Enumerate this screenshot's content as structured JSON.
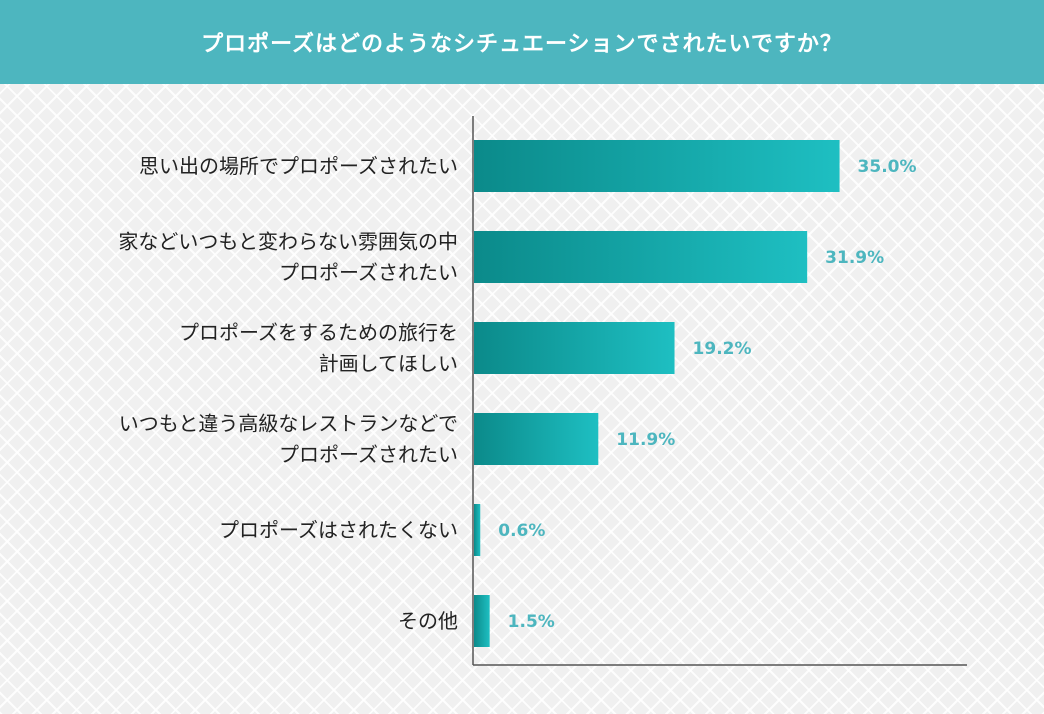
{
  "header": {
    "title": "プロポーズはどのようなシチュエーションでされたいですか？"
  },
  "colors": {
    "header_bg": "#4db6bf",
    "bar_gradient_start": "#0b8a8a",
    "bar_gradient_end": "#1ebfc2",
    "value_label": "#4db6bf",
    "axis": "#555555"
  },
  "chart_data": {
    "type": "bar",
    "orientation": "horizontal",
    "categories": [
      [
        "思い出の場所でプロポーズされたい"
      ],
      [
        "家などいつもと変わらない雰囲気の中",
        "プロポーズされたい"
      ],
      [
        "プロポーズをするための旅行を",
        "計画してほしい"
      ],
      [
        "いつもと違う高級なレストランなどで",
        "プロポーズされたい"
      ],
      [
        "プロポーズはされたくない"
      ],
      [
        "その他"
      ]
    ],
    "values": [
      35.0,
      31.9,
      19.2,
      11.9,
      0.6,
      1.5
    ],
    "value_labels": [
      "35.0%",
      "31.9%",
      "19.2%",
      "11.9%",
      "0.6%",
      "1.5%"
    ],
    "unit": "%",
    "xlim": [
      0,
      45
    ],
    "grid": false,
    "legend": "none"
  }
}
